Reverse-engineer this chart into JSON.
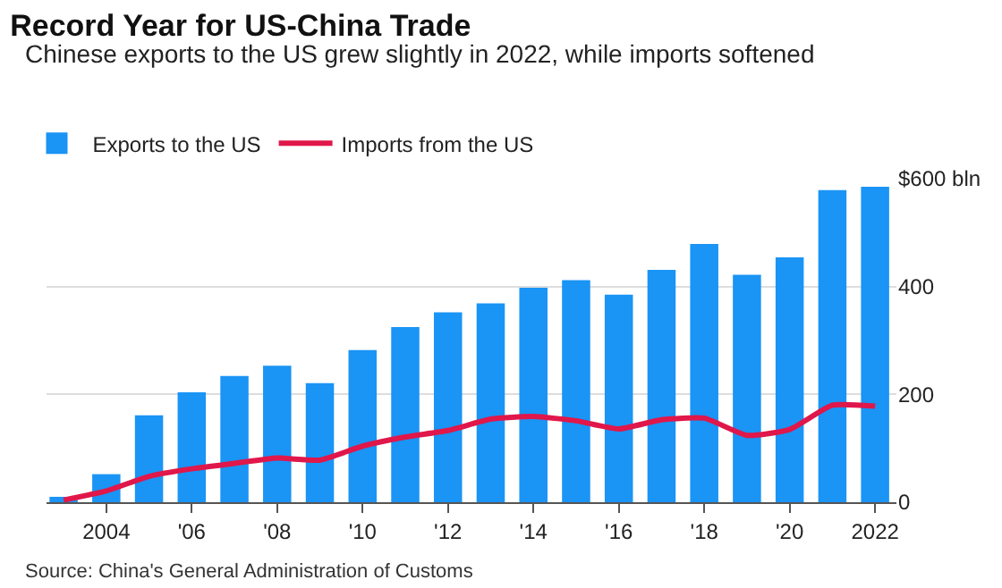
{
  "chart_data": {
    "type": "bar",
    "title": "Record Year for US-China Trade",
    "subtitle": "Chinese exports to the US grew slightly in 2022, while imports softened",
    "x": [
      2003,
      2004,
      2005,
      2006,
      2007,
      2008,
      2009,
      2010,
      2011,
      2012,
      2013,
      2014,
      2015,
      2016,
      2017,
      2018,
      2019,
      2020,
      2021,
      2022
    ],
    "series": [
      {
        "name": "Exports to the US",
        "color": "#1a94f5",
        "values": [
          10,
          52,
          161,
          204,
          234,
          253,
          221,
          282,
          325,
          352,
          369,
          398,
          412,
          385,
          431,
          479,
          422,
          454,
          579,
          585
        ]
      },
      {
        "name": "Imports from the US",
        "type": "line",
        "color": "#e0174a",
        "values": [
          4,
          21,
          48,
          62,
          72,
          82,
          78,
          104,
          121,
          133,
          154,
          159,
          151,
          136,
          153,
          156,
          124,
          135,
          180,
          178
        ]
      }
    ],
    "xlim": [
      2002.6,
      2022.5
    ],
    "xticks": [
      {
        "value": 2004,
        "label": "2004"
      },
      {
        "value": 2006,
        "label": "'06"
      },
      {
        "value": 2008,
        "label": "'08"
      },
      {
        "value": 2010,
        "label": "'10"
      },
      {
        "value": 2012,
        "label": "'12"
      },
      {
        "value": 2014,
        "label": "'14"
      },
      {
        "value": 2016,
        "label": "'16"
      },
      {
        "value": 2018,
        "label": "'18"
      },
      {
        "value": 2020,
        "label": "'20"
      },
      {
        "value": 2022,
        "label": "2022"
      }
    ],
    "ylim": [
      0,
      600
    ],
    "yticks": [
      0,
      200,
      400,
      {
        "value": 600,
        "label": "$600 bln"
      }
    ],
    "grid": "y",
    "legend": "top left",
    "marker": "none",
    "annotations": [
      "Source: China's General Administration of Customs"
    ]
  }
}
